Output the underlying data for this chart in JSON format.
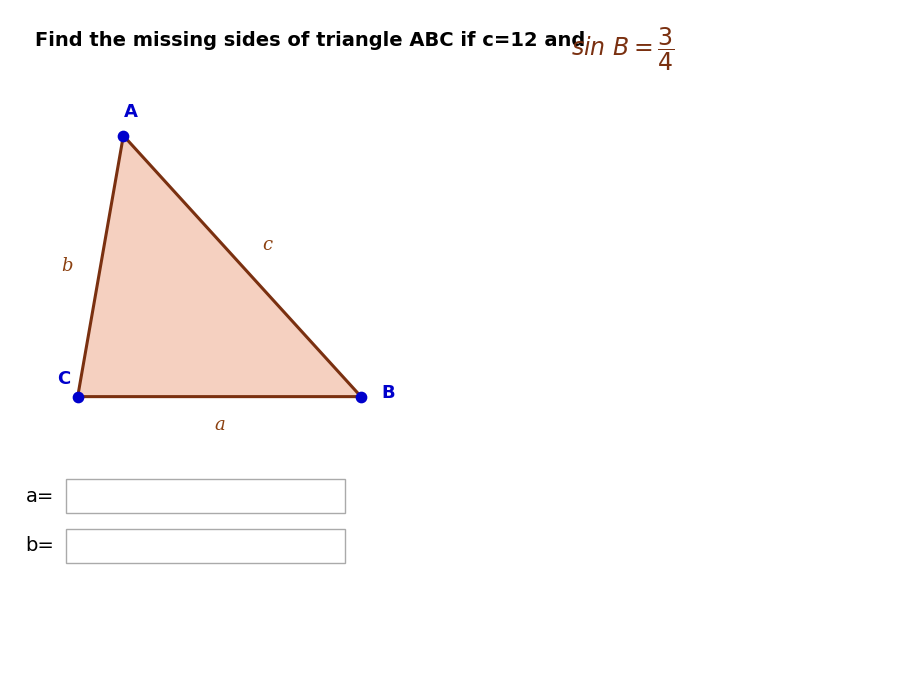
{
  "title_plain": "Find the missing sides of triangle ABC if c=12 and ",
  "background_color": "#ffffff",
  "triangle": {
    "A": [
      0.135,
      0.8
    ],
    "B": [
      0.395,
      0.415
    ],
    "C": [
      0.085,
      0.415
    ]
  },
  "fill_color": "#f5d0c0",
  "edge_color": "#7a3010",
  "vertex_dot_color": "#0000cc",
  "label_color": "#0000cc",
  "side_label_color": "#8b4010",
  "vertex_dot_size": 55,
  "label_A": "A",
  "label_B": "B",
  "label_C": "C",
  "label_a": "a",
  "label_b": "b",
  "label_c": "c",
  "text_color": "#000000",
  "formula_color": "#7a3010"
}
